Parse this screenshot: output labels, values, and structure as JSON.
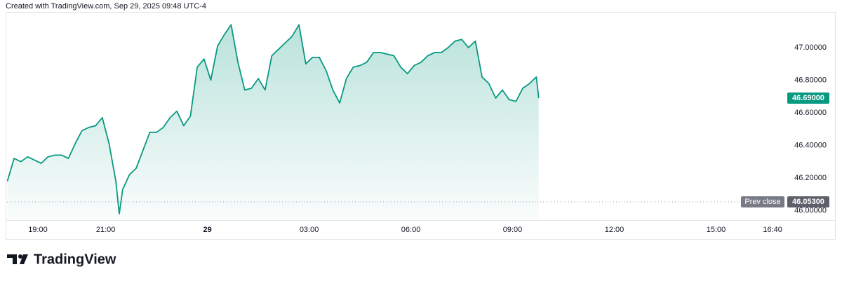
{
  "chart_data": {
    "type": "area",
    "header": "Created with TradingView.com, Sep 29, 2025 09:48 UTC-4",
    "brand": "TradingView",
    "color": "#089981",
    "x": [
      18.1,
      18.3,
      18.5,
      18.7,
      18.9,
      19.1,
      19.3,
      19.5,
      19.7,
      19.9,
      20.1,
      20.3,
      20.5,
      20.7,
      20.9,
      21.1,
      21.3,
      21.4,
      21.5,
      21.7,
      21.9,
      22.1,
      22.3,
      22.5,
      22.7,
      22.9,
      23.1,
      23.3,
      23.5,
      23.7,
      23.9,
      24.1,
      24.3,
      24.5,
      24.7,
      24.9,
      25.1,
      25.3,
      25.5,
      25.7,
      25.9,
      26.1,
      26.3,
      26.5,
      26.7,
      26.9,
      27.1,
      27.3,
      27.5,
      27.7,
      27.9,
      28.1,
      28.3,
      28.5,
      28.7,
      28.9,
      29.1,
      29.3,
      29.5,
      29.7,
      29.9,
      30.1,
      30.3,
      30.5,
      30.7,
      30.9,
      31.1,
      31.3,
      31.5,
      31.7,
      31.9,
      32.1,
      32.3,
      32.5,
      32.7,
      32.9,
      33.1,
      33.3,
      33.5,
      33.7,
      33.77
    ],
    "values": [
      46.18,
      46.32,
      46.3,
      46.33,
      46.31,
      46.29,
      46.33,
      46.34,
      46.34,
      46.32,
      46.41,
      46.49,
      46.51,
      46.52,
      46.57,
      46.41,
      46.18,
      45.98,
      46.13,
      46.22,
      46.26,
      46.37,
      46.48,
      46.48,
      46.51,
      46.57,
      46.61,
      46.52,
      46.58,
      46.88,
      46.93,
      46.8,
      47.01,
      47.08,
      47.14,
      46.91,
      46.74,
      46.75,
      46.81,
      46.74,
      46.95,
      46.99,
      47.03,
      47.07,
      47.14,
      46.9,
      46.94,
      46.94,
      46.86,
      46.74,
      46.66,
      46.81,
      46.88,
      46.89,
      46.91,
      46.97,
      46.97,
      46.96,
      46.95,
      46.88,
      46.84,
      46.89,
      46.91,
      46.95,
      46.97,
      46.97,
      47.0,
      47.04,
      47.05,
      47.0,
      47.04,
      46.82,
      46.78,
      46.69,
      46.74,
      46.68,
      46.67,
      46.75,
      46.78,
      46.82,
      46.69
    ],
    "xlim": [
      18.09,
      40.79
    ],
    "ylim": [
      45.946,
      47.206
    ],
    "xticks": [
      {
        "value": 19,
        "label": "19:00"
      },
      {
        "value": 21,
        "label": "21:00"
      },
      {
        "value": 24,
        "label": "29"
      },
      {
        "value": 27,
        "label": "03:00"
      },
      {
        "value": 30,
        "label": "06:00"
      },
      {
        "value": 33,
        "label": "09:00"
      },
      {
        "value": 36,
        "label": "12:00"
      },
      {
        "value": 39,
        "label": "15:00"
      },
      {
        "value": 40.667,
        "label": "16:40"
      }
    ],
    "yticks": [
      {
        "value": 46,
        "label": "46.00000"
      },
      {
        "value": 46.2,
        "label": "46.20000"
      },
      {
        "value": 46.4,
        "label": "46.40000"
      },
      {
        "value": 46.6,
        "label": "46.60000"
      },
      {
        "value": 46.8,
        "label": "46.80000"
      },
      {
        "value": 47,
        "label": "47.00000"
      }
    ],
    "last_price": {
      "value": 46.69,
      "label": "46.69000"
    },
    "prev_close": {
      "name": "Prev close",
      "value": 46.053,
      "label": "46.05300"
    }
  }
}
